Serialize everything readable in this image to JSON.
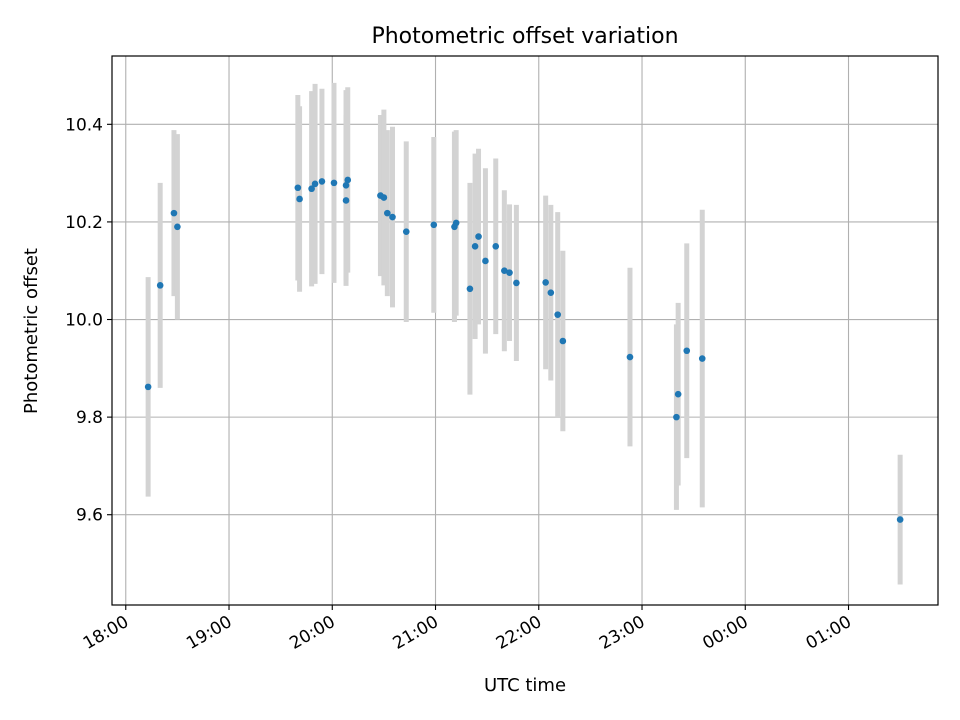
{
  "chart_data": {
    "type": "scatter",
    "title": "Photometric offset variation",
    "xlabel": "UTC time",
    "ylabel": "Photometric offset",
    "x_axis": {
      "type": "time",
      "ticks": [
        "18:00",
        "19:00",
        "20:00",
        "21:00",
        "22:00",
        "23:00",
        "00:00",
        "01:00"
      ],
      "range": [
        "17:52",
        "25:52"
      ]
    },
    "y_axis": {
      "ticks": [
        "9.6",
        "9.8",
        "10.0",
        "10.2",
        "10.4"
      ],
      "range": [
        9.415,
        10.54
      ]
    },
    "grid": true,
    "marker_color": "#1f77b4",
    "errorbar_color": "#d3d3d3",
    "points": [
      {
        "x": "18:13",
        "y": 9.862,
        "err": 0.225
      },
      {
        "x": "18:20",
        "y": 10.07,
        "err": 0.21
      },
      {
        "x": "18:28",
        "y": 10.218,
        "err": 0.17
      },
      {
        "x": "18:30",
        "y": 10.19,
        "err": 0.19
      },
      {
        "x": "19:40",
        "y": 10.27,
        "err": 0.19
      },
      {
        "x": "19:41",
        "y": 10.247,
        "err": 0.19
      },
      {
        "x": "19:48",
        "y": 10.268,
        "err": 0.2
      },
      {
        "x": "19:50",
        "y": 10.278,
        "err": 0.205
      },
      {
        "x": "19:54",
        "y": 10.283,
        "err": 0.19
      },
      {
        "x": "20:01",
        "y": 10.28,
        "err": 0.205
      },
      {
        "x": "20:08",
        "y": 10.275,
        "err": 0.195
      },
      {
        "x": "20:08",
        "y": 10.244,
        "err": 0.175
      },
      {
        "x": "20:09",
        "y": 10.286,
        "err": 0.19
      },
      {
        "x": "20:28",
        "y": 10.254,
        "err": 0.165
      },
      {
        "x": "20:30",
        "y": 10.25,
        "err": 0.18
      },
      {
        "x": "20:32",
        "y": 10.218,
        "err": 0.17
      },
      {
        "x": "20:35",
        "y": 10.21,
        "err": 0.185
      },
      {
        "x": "20:43",
        "y": 10.18,
        "err": 0.185
      },
      {
        "x": "20:59",
        "y": 10.194,
        "err": 0.18
      },
      {
        "x": "21:11",
        "y": 10.19,
        "err": 0.195
      },
      {
        "x": "21:12",
        "y": 10.198,
        "err": 0.19
      },
      {
        "x": "21:20",
        "y": 10.063,
        "err": 0.217
      },
      {
        "x": "21:23",
        "y": 10.15,
        "err": 0.19
      },
      {
        "x": "21:25",
        "y": 10.17,
        "err": 0.18
      },
      {
        "x": "21:29",
        "y": 10.12,
        "err": 0.19
      },
      {
        "x": "21:35",
        "y": 10.15,
        "err": 0.18
      },
      {
        "x": "21:40",
        "y": 10.1,
        "err": 0.165
      },
      {
        "x": "21:43",
        "y": 10.096,
        "err": 0.14
      },
      {
        "x": "21:47",
        "y": 10.075,
        "err": 0.16
      },
      {
        "x": "22:04",
        "y": 10.076,
        "err": 0.178
      },
      {
        "x": "22:07",
        "y": 10.055,
        "err": 0.18
      },
      {
        "x": "22:11",
        "y": 10.01,
        "err": 0.21
      },
      {
        "x": "22:14",
        "y": 9.956,
        "err": 0.185
      },
      {
        "x": "22:53",
        "y": 9.923,
        "err": 0.183
      },
      {
        "x": "23:20",
        "y": 9.8,
        "err": 0.19
      },
      {
        "x": "23:21",
        "y": 9.847,
        "err": 0.187
      },
      {
        "x": "23:26",
        "y": 9.936,
        "err": 0.22
      },
      {
        "x": "23:35",
        "y": 9.92,
        "err": 0.305
      },
      {
        "x": "25:30",
        "y": 9.59,
        "err": 0.133
      }
    ]
  }
}
